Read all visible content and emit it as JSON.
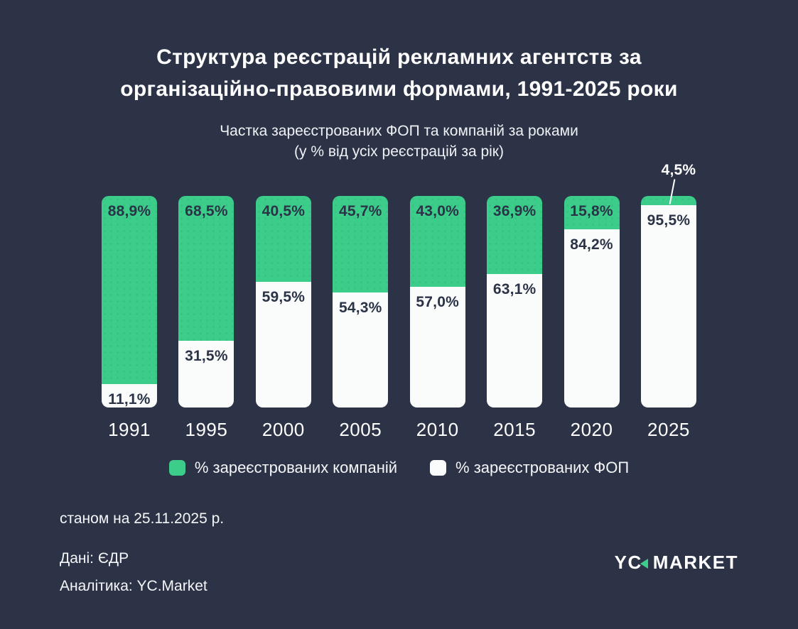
{
  "title": "Структура реєстрацій рекламних агентств за\nорганізаційно-правовими формами, 1991-2025 роки",
  "subtitle": "Частка зареєстрованих ФОП та компаній за роками\n(у % від усіх реєстрацій за рік)",
  "chart_data": {
    "type": "bar",
    "stacked": true,
    "orientation": "vertical",
    "categories": [
      "1991",
      "1995",
      "2000",
      "2005",
      "2010",
      "2015",
      "2020",
      "2025"
    ],
    "series": [
      {
        "name": "% зареєстрованих компаній",
        "color": "#3CCD8B",
        "values": [
          88.9,
          68.5,
          40.5,
          45.7,
          43.0,
          36.9,
          15.8,
          4.5
        ],
        "labels": [
          "88,9%",
          "68,5%",
          "40,5%",
          "45,7%",
          "43,0%",
          "36,9%",
          "15,8%",
          "4,5%"
        ]
      },
      {
        "name": "% зареєстрованих ФОП",
        "color": "#FAFBFB",
        "values": [
          11.1,
          31.5,
          59.5,
          54.3,
          57.0,
          63.1,
          84.2,
          95.5
        ],
        "labels": [
          "11,1%",
          "31,5%",
          "59,5%",
          "54,3%",
          "57,0%",
          "63,1%",
          "84,2%",
          "95,5%"
        ]
      }
    ],
    "ylim": [
      0,
      100
    ],
    "grid": false,
    "legend_position": "bottom",
    "annotations": [
      {
        "category": "2025",
        "series": "% зареєстрованих компаній",
        "text": "4,5%",
        "type": "callout-above-bar"
      }
    ]
  },
  "legend": {
    "companies": "% зареєстрованих компаній",
    "fop": "% зареєстрованих ФОП"
  },
  "footer": {
    "as_of": "станом на 25.11.2025 р.",
    "data_source": "Дані: ЄДР",
    "analytics": "Аналітика: YC.Market"
  },
  "logo": {
    "part1": "YC",
    "part2": "MARKET"
  },
  "colors": {
    "background": "#2C3347",
    "green": "#3CCD8B",
    "bar_white": "#FAFBFB",
    "label_dark": "#2B3347",
    "text_light": "#FFFFFF"
  }
}
